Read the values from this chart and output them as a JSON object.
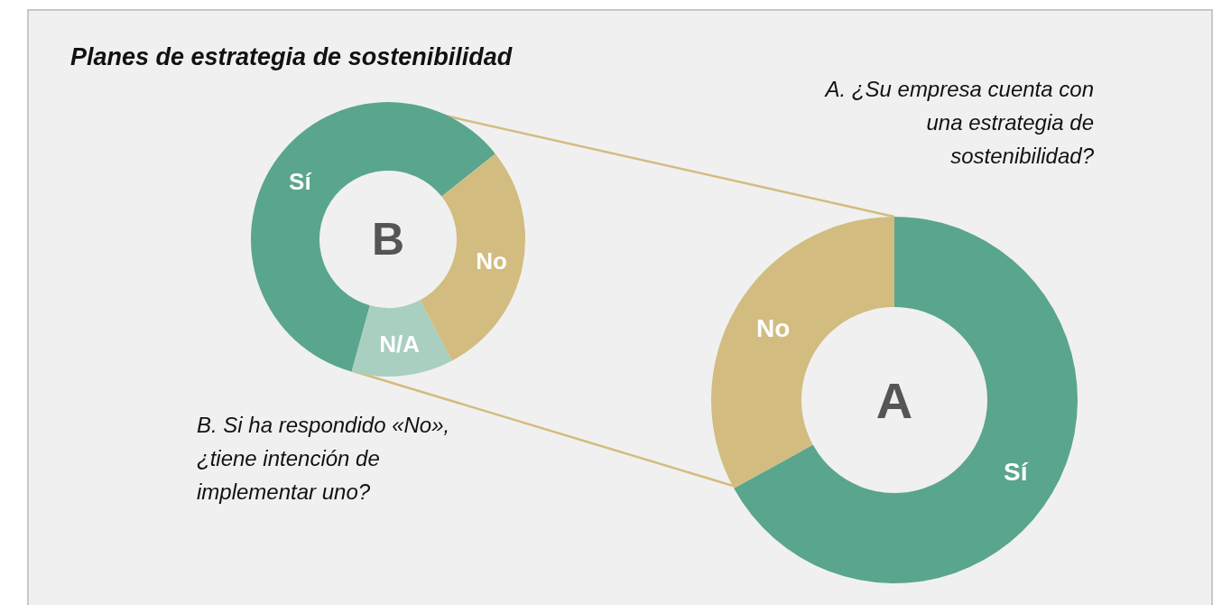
{
  "chart_data": [
    {
      "type": "donut",
      "title": "B",
      "annotations": [
        "Planes de estrategia de sostenibilidad",
        "B. Si ha respondido «No», ¿tiene intención de implementar uno?"
      ],
      "categories": [
        "Sí",
        "No",
        "N/A"
      ],
      "values": [
        60,
        28,
        12
      ],
      "colors": [
        "#5aa58d",
        "#d2bc80",
        "#a8cfc0"
      ],
      "legend": false
    },
    {
      "type": "donut",
      "title": "A",
      "annotations": [
        "A. ¿Su empresa cuenta con una estrategia de sostenibilidad?"
      ],
      "categories": [
        "Sí",
        "No"
      ],
      "values": [
        67,
        33
      ],
      "colors": [
        "#5aa58d",
        "#d2bc80"
      ],
      "legend": false
    }
  ]
}
